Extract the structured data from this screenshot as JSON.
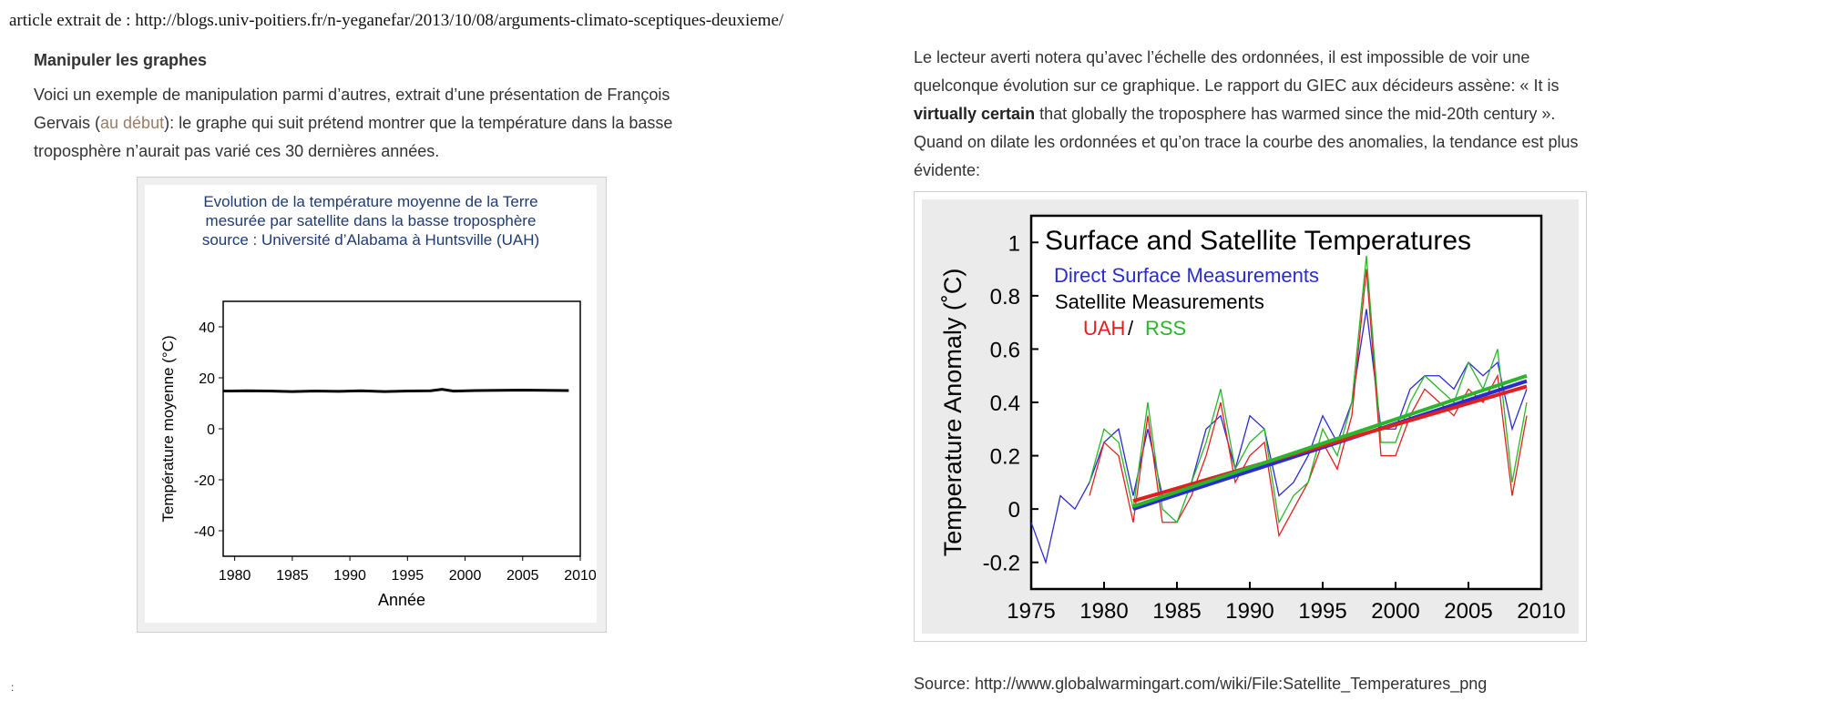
{
  "header": {
    "text": "article extrait de : http://blogs.univ-poitiers.fr/n-yeganefar/2013/10/08/arguments-climato-sceptiques-deuxieme/"
  },
  "left": {
    "heading": "Manipuler les graphes",
    "para_before_link": "Voici un exemple de manipulation parmi d’autres, extrait d’une présentation de François Gervais (",
    "link_text": "au début",
    "para_after_link": "): le graphe qui suit prétend montrer que la température dans la basse troposphère n’aurait pas varié ces 30 dernières années."
  },
  "right": {
    "para_part1": "Le lecteur averti notera qu’avec l’échelle des ordonnées, il est impossible de voir une quelconque évolution sur ce graphique. Le rapport du GIEC aux décideurs assène: « It is ",
    "para_bold": "virtually certain",
    "para_part2": " that globally the troposphere has warmed since the mid-20th century ». Quand on dilate les ordonnées et qu’on trace la courbe des anomalies, la tendance est plus évidente:",
    "source": "Source: http://www.globalwarmingart.com/wiki/File:Satellite_Temperatures_png"
  },
  "footer_mark": ":",
  "colors": {
    "surface": "#2b2bd1",
    "uah": "#e02020",
    "rss": "#2ab52a",
    "title_blue": "#1f3b73",
    "link": "#9a7d63"
  },
  "chart_data": [
    {
      "type": "line",
      "title_lines": [
        "Evolution de la température moyenne de la Terre",
        "mesurée par satellite dans la basse troposphère",
        "source : Université d’Alabama à Huntsville (UAH)"
      ],
      "xlabel": "Année",
      "ylabel": "Température moyenne (°C)",
      "xlim": [
        1979,
        2010
      ],
      "ylim": [
        -50,
        50
      ],
      "xticks": [
        1980,
        1985,
        1990,
        1995,
        2000,
        2005,
        2010
      ],
      "yticks": [
        -40,
        -20,
        0,
        20,
        40
      ],
      "grid": false,
      "series": [
        {
          "x": [
            1979,
            1981,
            1983,
            1985,
            1987,
            1989,
            1991,
            1993,
            1995,
            1997,
            1998,
            1999,
            2001,
            2003,
            2005,
            2007,
            2009
          ],
          "values": [
            14.8,
            14.9,
            14.8,
            14.6,
            14.8,
            14.7,
            14.9,
            14.6,
            14.8,
            14.9,
            15.5,
            14.8,
            15.0,
            15.1,
            15.2,
            15.1,
            15.0
          ]
        }
      ]
    },
    {
      "type": "line",
      "title": "Surface and Satellite Temperatures",
      "legend_lines": [
        "Direct Surface Measurements",
        "Satellite Measurements",
        "UAH",
        "/",
        "RSS"
      ],
      "ylabel": "Temperature Anomaly (˚C)",
      "xlim": [
        1975,
        2010
      ],
      "ylim": [
        -0.3,
        1.1
      ],
      "xticks": [
        1975,
        1980,
        1985,
        1990,
        1995,
        2000,
        2005,
        2010
      ],
      "yticks": [
        -0.2,
        0,
        0.2,
        0.4,
        0.6,
        0.8,
        1
      ],
      "grid": false,
      "legend": "top-left",
      "series": [
        {
          "name": "Direct Surface Measurements",
          "x": [
            1975,
            1976,
            1977,
            1978,
            1979,
            1980,
            1981,
            1982,
            1983,
            1984,
            1985,
            1986,
            1987,
            1988,
            1989,
            1990,
            1991,
            1992,
            1993,
            1994,
            1995,
            1996,
            1997,
            1998,
            1999,
            2000,
            2001,
            2002,
            2003,
            2004,
            2005,
            2006,
            2007,
            2008,
            2009
          ],
          "values": [
            -0.05,
            -0.2,
            0.05,
            0.0,
            0.1,
            0.25,
            0.3,
            0.05,
            0.3,
            0.05,
            0.05,
            0.1,
            0.3,
            0.35,
            0.15,
            0.35,
            0.3,
            0.05,
            0.1,
            0.2,
            0.35,
            0.25,
            0.4,
            0.75,
            0.3,
            0.3,
            0.45,
            0.5,
            0.5,
            0.45,
            0.55,
            0.5,
            0.55,
            0.3,
            0.45
          ],
          "trend": [
            [
              1982,
              0.0
            ],
            [
              2009,
              0.48
            ]
          ]
        },
        {
          "name": "UAH",
          "x": [
            1979,
            1980,
            1981,
            1982,
            1983,
            1984,
            1985,
            1986,
            1987,
            1988,
            1989,
            1990,
            1991,
            1992,
            1993,
            1994,
            1995,
            1996,
            1997,
            1998,
            1999,
            2000,
            2001,
            2002,
            2003,
            2004,
            2005,
            2006,
            2007,
            2008,
            2009
          ],
          "values": [
            0.05,
            0.25,
            0.2,
            -0.05,
            0.35,
            -0.05,
            -0.05,
            0.05,
            0.2,
            0.4,
            0.1,
            0.2,
            0.25,
            -0.1,
            0.0,
            0.1,
            0.25,
            0.15,
            0.35,
            0.9,
            0.2,
            0.2,
            0.35,
            0.45,
            0.4,
            0.35,
            0.45,
            0.4,
            0.5,
            0.05,
            0.35
          ],
          "trend": [
            [
              1982,
              0.03
            ],
            [
              2009,
              0.46
            ]
          ]
        },
        {
          "name": "RSS",
          "x": [
            1979,
            1980,
            1981,
            1982,
            1983,
            1984,
            1985,
            1986,
            1987,
            1988,
            1989,
            1990,
            1991,
            1992,
            1993,
            1994,
            1995,
            1996,
            1997,
            1998,
            1999,
            2000,
            2001,
            2002,
            2003,
            2004,
            2005,
            2006,
            2007,
            2008,
            2009
          ],
          "values": [
            0.1,
            0.3,
            0.25,
            0.0,
            0.4,
            0.0,
            -0.05,
            0.1,
            0.25,
            0.45,
            0.15,
            0.25,
            0.3,
            -0.05,
            0.05,
            0.1,
            0.3,
            0.2,
            0.4,
            0.95,
            0.25,
            0.25,
            0.4,
            0.5,
            0.45,
            0.4,
            0.55,
            0.45,
            0.6,
            0.1,
            0.4
          ],
          "trend": [
            [
              1982,
              0.01
            ],
            [
              2009,
              0.5
            ]
          ]
        }
      ]
    }
  ]
}
